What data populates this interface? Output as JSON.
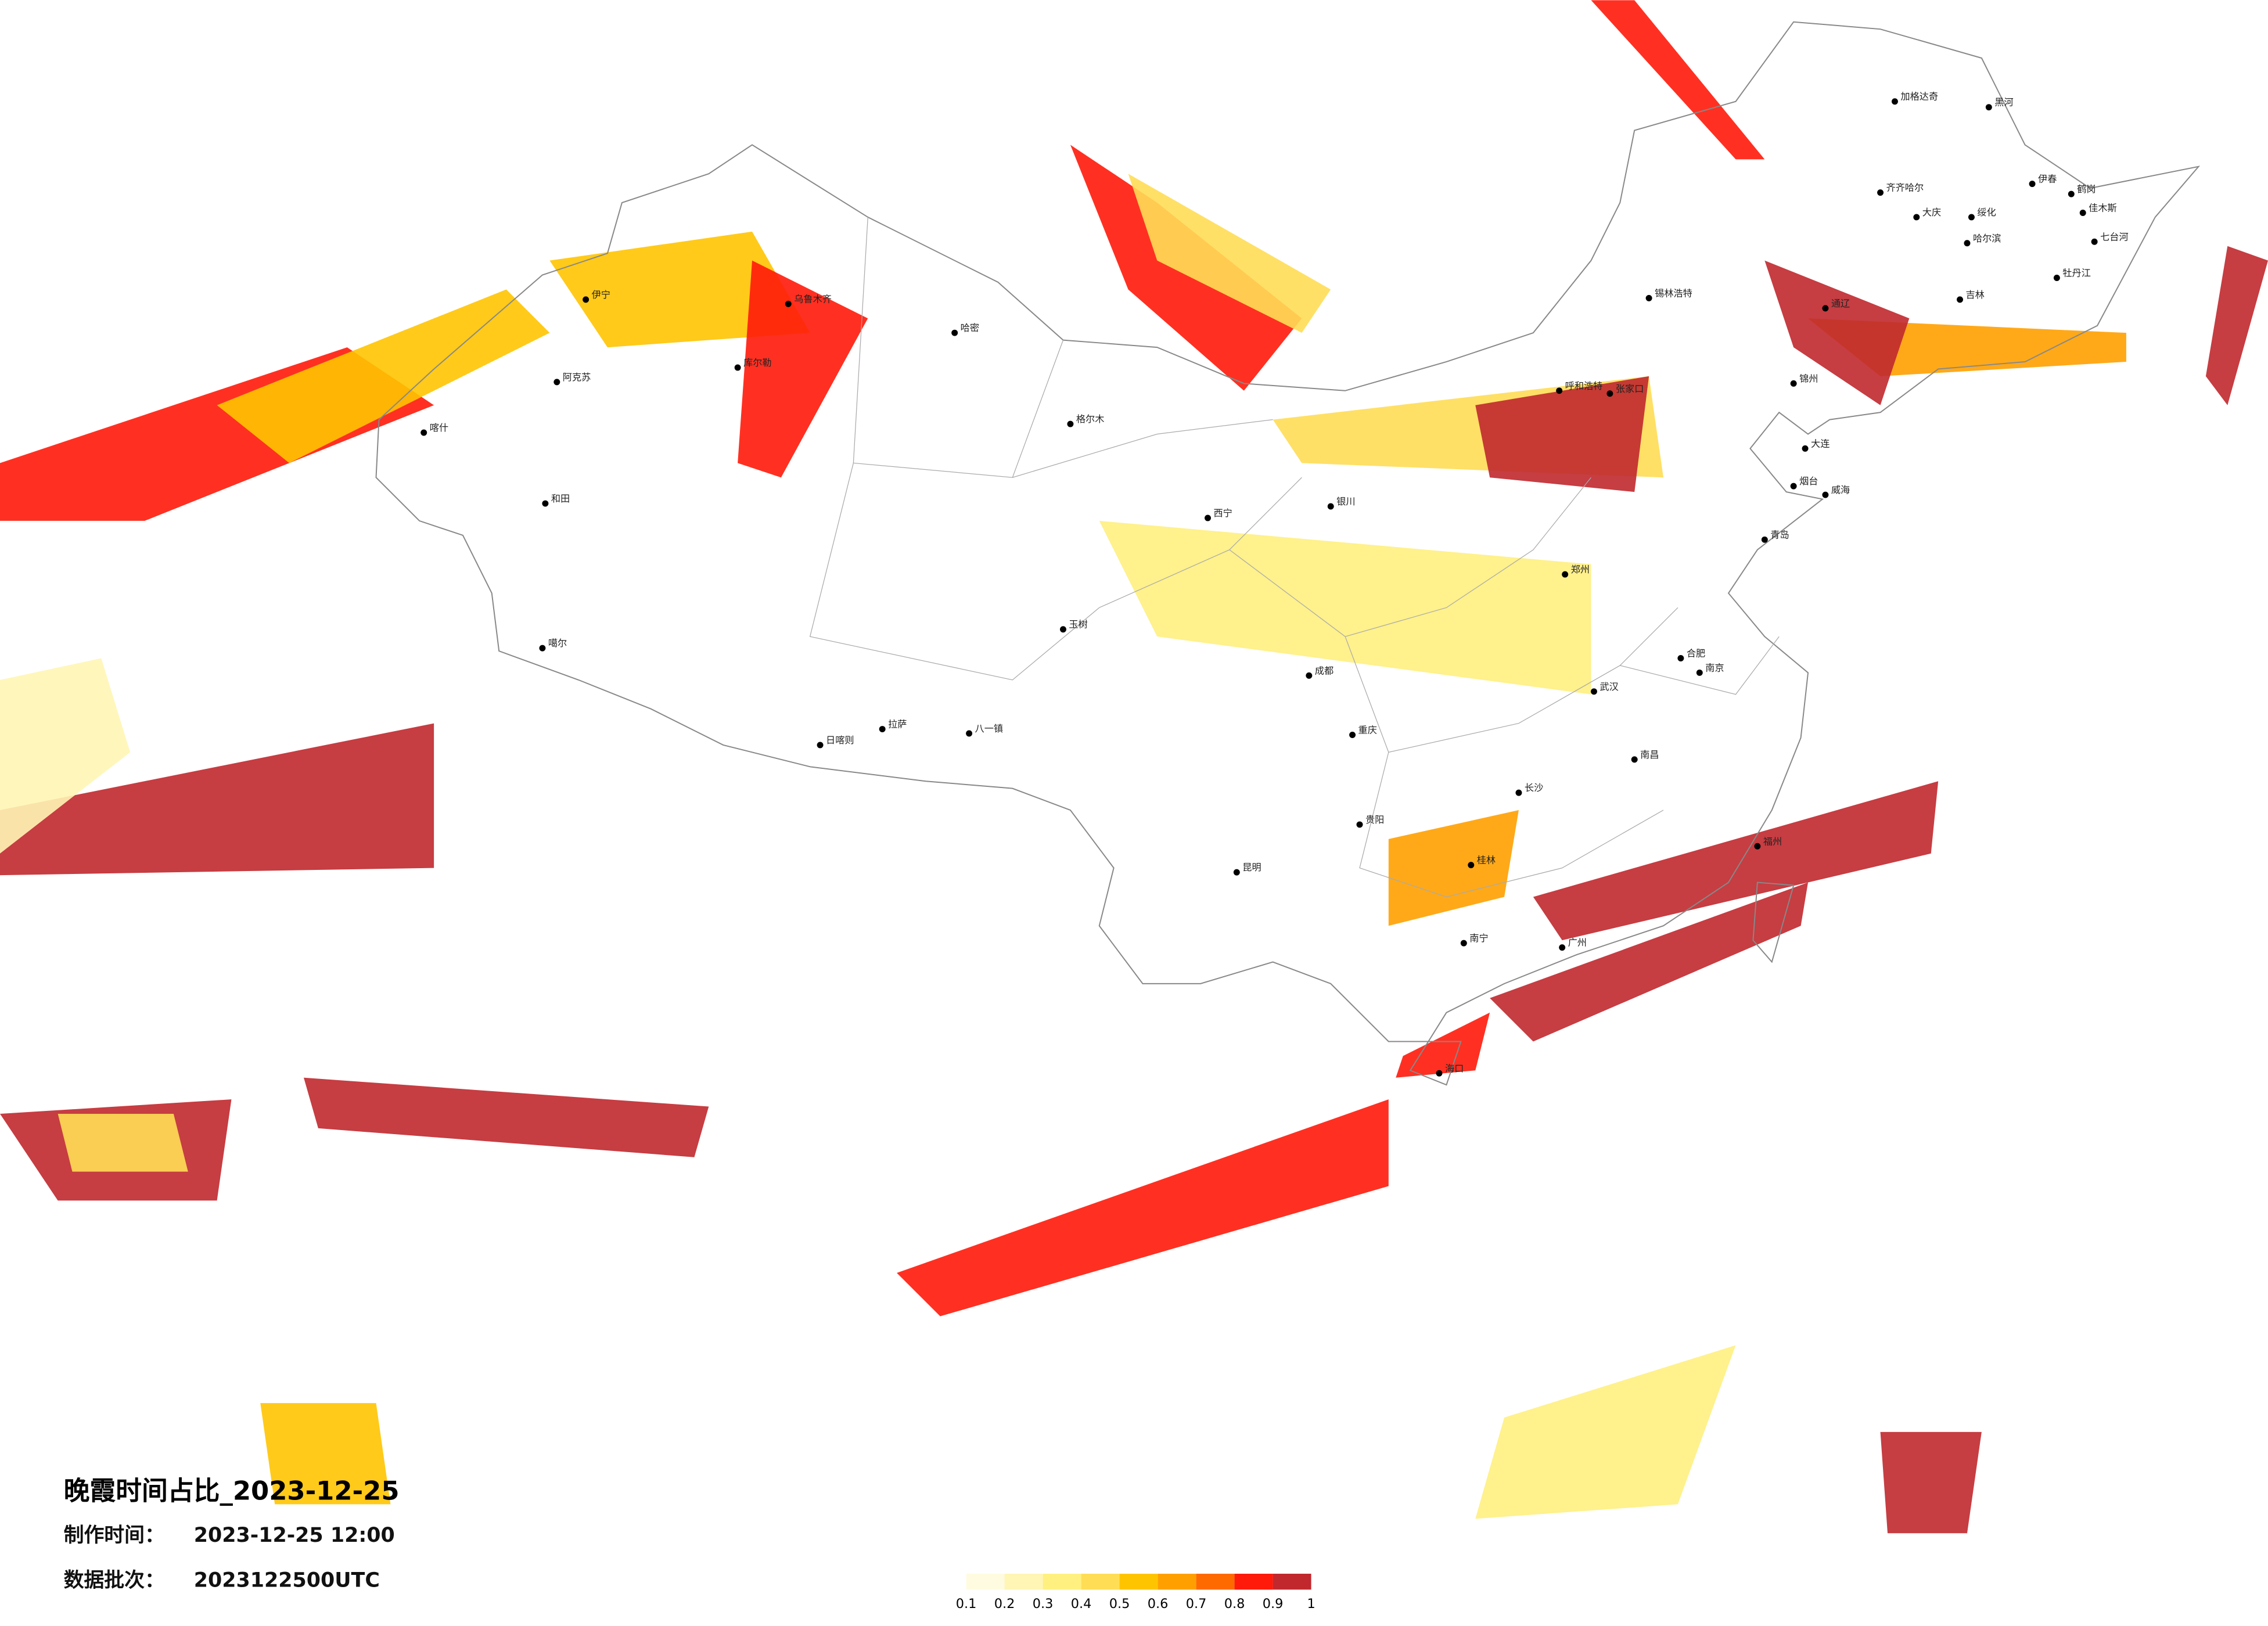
{
  "title": "晚霞时间占比_2023-12-25",
  "info": [
    {
      "label": "制作时间：",
      "value": "2023-12-25 12:00"
    },
    {
      "label": "数据批次：",
      "value": "2023122500UTC"
    }
  ],
  "legend": {
    "ticks": [
      0.1,
      0.2,
      0.3,
      0.4,
      0.5,
      0.6,
      0.7,
      0.8,
      0.9,
      1
    ],
    "colors": [
      "#fffbe0",
      "#fff5b5",
      "#fff080",
      "#ffdd55",
      "#ffc400",
      "#ffa000",
      "#ff6a00",
      "#ff1a0a",
      "#c0282d"
    ]
  },
  "cities": [
    "加格达奇",
    "黑河",
    "伊春",
    "鹤岗",
    "佳木斯",
    "七台河",
    "牡丹江",
    "绥化",
    "大庆",
    "齐齐哈尔",
    "哈尔滨",
    "吉林",
    "通辽",
    "锦州",
    "大连",
    "烟台",
    "威海",
    "青岛",
    "张家口",
    "呼和浩特",
    "锡林浩特",
    "郑州",
    "成都",
    "重庆",
    "贵阳",
    "昆明",
    "南宁",
    "桂林",
    "长沙",
    "武汉",
    "南昌",
    "合肥",
    "南京",
    "福州",
    "广州",
    "拉萨",
    "日喀则",
    "八一镇",
    "玉树",
    "格尔木",
    "西宁",
    "银川",
    "哈密",
    "乌鲁木齐",
    "库尔勒",
    "阿克苏",
    "伊宁",
    "喀什",
    "和田",
    "噶尔",
    "海口"
  ]
}
